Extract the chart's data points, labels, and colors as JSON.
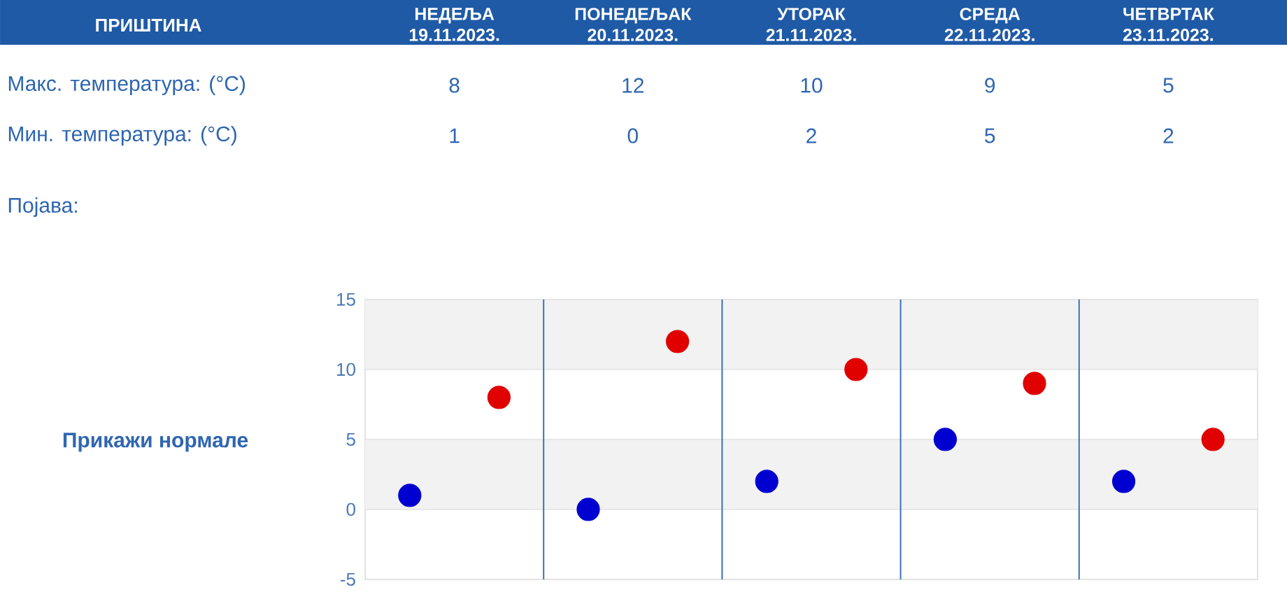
{
  "chart_data": [
    {
      "type": "other",
      "title": "ПРИШТИНА",
      "categories": [
        "НЕДЕЉА 19.11.2023.",
        "ПОНЕДЕЉАК 20.11.2023.",
        "УТОРАК 21.11.2023.",
        "СРЕДА 22.11.2023.",
        "ЧЕТВРТАК 23.11.2023."
      ],
      "series": [
        {
          "name": "Макс. температура: (°C)",
          "values": [
            8,
            12,
            10,
            9,
            5
          ]
        },
        {
          "name": "Мин. температура: (°C)",
          "values": [
            1,
            0,
            2,
            5,
            2
          ]
        }
      ],
      "data_labels": true,
      "annotations": [
        "Појава:"
      ]
    },
    {
      "type": "scatter",
      "categories": [
        null,
        null,
        null,
        null,
        null
      ],
      "series": [
        {
          "color": "#e00000",
          "values": [
            8,
            12,
            10,
            9,
            5
          ]
        },
        {
          "color": "#0000d0",
          "values": [
            1,
            0,
            2,
            5,
            2
          ]
        }
      ],
      "ylim": [
        -5,
        15
      ],
      "yticks": [
        -5,
        0,
        5,
        10,
        15
      ],
      "grid": true,
      "marker": "circle",
      "bands": [
        {
          "axis": "y",
          "from": 10,
          "to": 15,
          "color": "#f2f2f2"
        },
        {
          "axis": "y",
          "from": 0,
          "to": 5,
          "color": "#f2f2f2"
        }
      ],
      "annotations": [
        "Прикажи нормале"
      ]
    }
  ]
}
